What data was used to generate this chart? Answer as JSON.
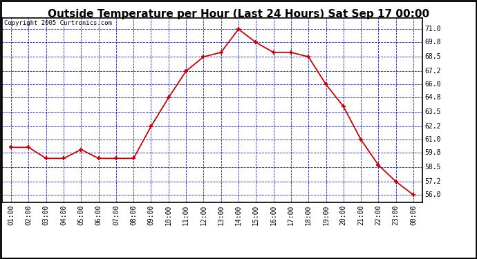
{
  "title": "Outside Temperature per Hour (Last 24 Hours) Sat Sep 17 00:00",
  "copyright": "Copyright 2005 Curtronics.com",
  "x_labels": [
    "01:00",
    "02:00",
    "03:00",
    "04:00",
    "05:00",
    "06:00",
    "07:00",
    "08:00",
    "09:00",
    "10:00",
    "11:00",
    "12:00",
    "13:00",
    "14:00",
    "15:00",
    "16:00",
    "17:00",
    "18:00",
    "19:00",
    "20:00",
    "21:00",
    "22:00",
    "23:00",
    "00:00"
  ],
  "y_values": [
    60.3,
    60.3,
    59.3,
    59.3,
    60.1,
    59.3,
    59.3,
    59.3,
    62.2,
    64.8,
    67.2,
    68.5,
    68.9,
    71.0,
    69.8,
    68.9,
    68.9,
    68.5,
    66.0,
    64.0,
    61.0,
    58.7,
    57.2,
    56.0
  ],
  "line_color": "#cc0000",
  "marker_color": "#cc0000",
  "bg_color": "#ffffff",
  "plot_bg_color": "#ffffff",
  "grid_color": "#0000cc",
  "y_min": 55.35,
  "y_max": 72.0,
  "y_ticks": [
    56.0,
    57.2,
    58.5,
    59.8,
    61.0,
    62.2,
    63.5,
    64.8,
    66.0,
    67.2,
    68.5,
    69.8,
    71.0
  ],
  "title_fontsize": 11,
  "label_fontsize": 7,
  "copyright_fontsize": 6.5
}
